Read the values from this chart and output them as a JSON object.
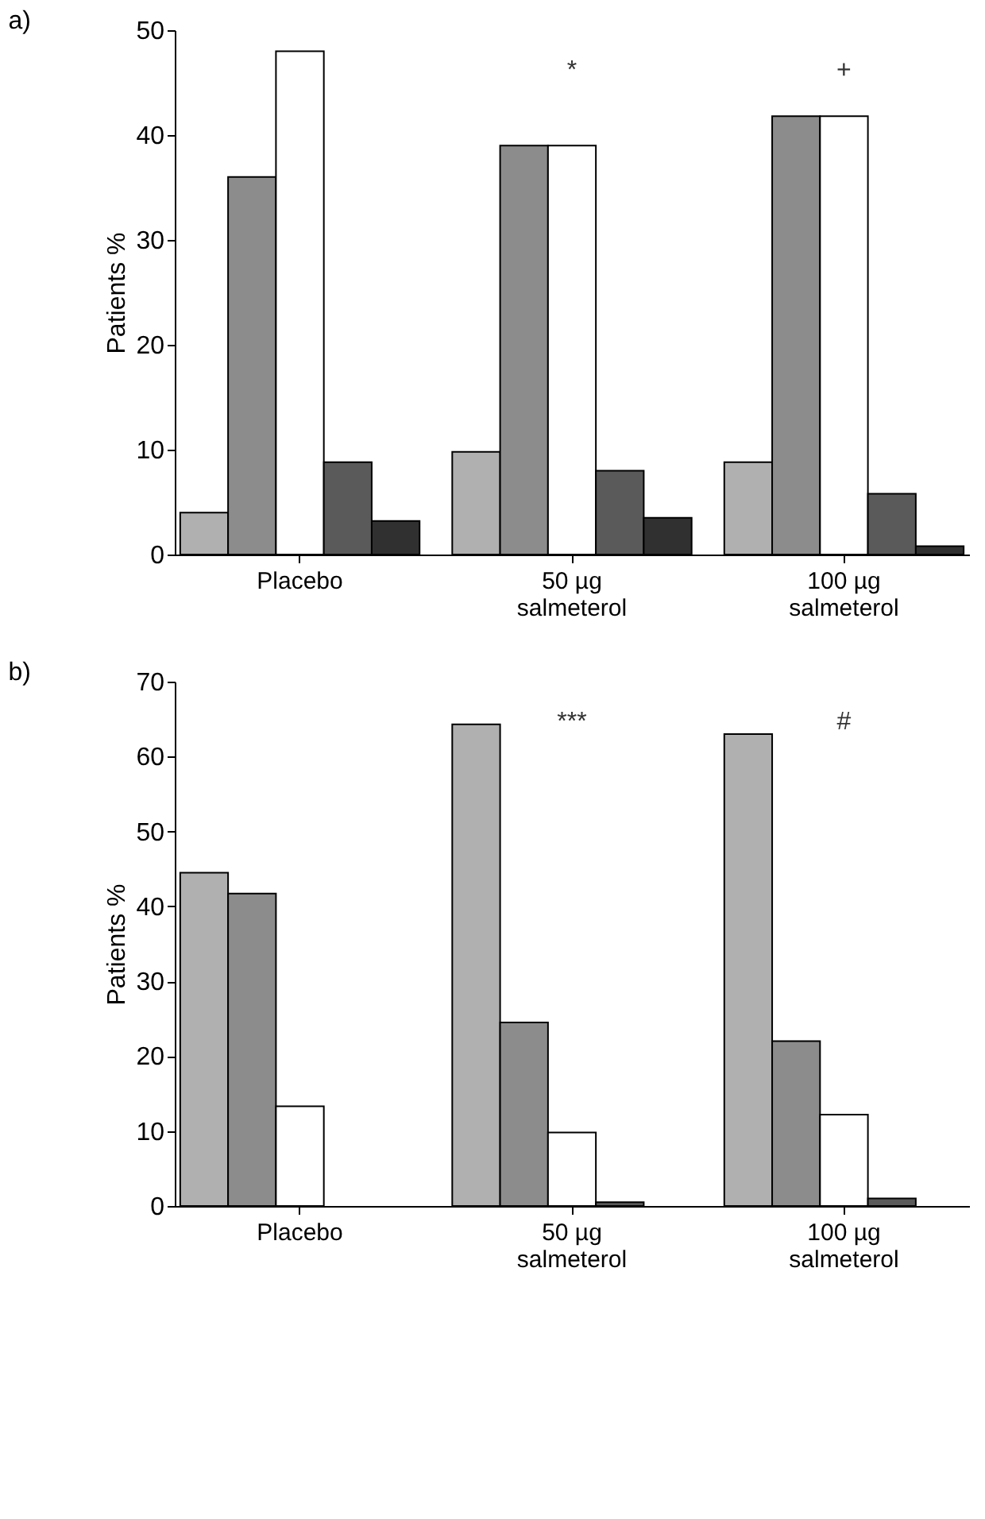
{
  "chart_data": [
    {
      "type": "bar",
      "title": "a)",
      "ylabel": "Patients %",
      "categories": [
        "Placebo",
        "50 µg salmeterol",
        "100 µg salmeterol"
      ],
      "ylim": [
        0,
        50
      ],
      "yticks": [
        0,
        10,
        20,
        30,
        40,
        50
      ],
      "grid": false,
      "legend": false,
      "series": [
        {
          "color": "#b0b0b0",
          "values": [
            4,
            9.8,
            8.8
          ]
        },
        {
          "color": "#8c8c8c",
          "values": [
            36,
            39,
            41.8
          ]
        },
        {
          "color": "#ffffff",
          "values": [
            48,
            39,
            41.8
          ]
        },
        {
          "color": "#5a5a5a",
          "values": [
            8.8,
            8,
            5.8
          ]
        },
        {
          "color": "#303030",
          "values": [
            3.2,
            3.5,
            0.8
          ]
        }
      ],
      "annotations": [
        "*",
        "+"
      ]
    },
    {
      "type": "bar",
      "title": "b)",
      "ylabel": "Patients %",
      "categories": [
        "Placebo",
        "50 µg salmeterol",
        "100 µg salmeterol"
      ],
      "ylim": [
        0,
        70
      ],
      "yticks": [
        0,
        10,
        20,
        30,
        40,
        50,
        60,
        70
      ],
      "grid": false,
      "legend": false,
      "series": [
        {
          "color": "#b0b0b0",
          "values": [
            44.5,
            64.3,
            63
          ]
        },
        {
          "color": "#8c8c8c",
          "values": [
            41.7,
            24.5,
            22
          ]
        },
        {
          "color": "#ffffff",
          "values": [
            13.3,
            9.8,
            12.2
          ]
        },
        {
          "color": "#5a5a5a",
          "values": [
            null,
            0.5,
            1.0
          ]
        }
      ],
      "annotations": [
        "***",
        "#"
      ]
    }
  ]
}
